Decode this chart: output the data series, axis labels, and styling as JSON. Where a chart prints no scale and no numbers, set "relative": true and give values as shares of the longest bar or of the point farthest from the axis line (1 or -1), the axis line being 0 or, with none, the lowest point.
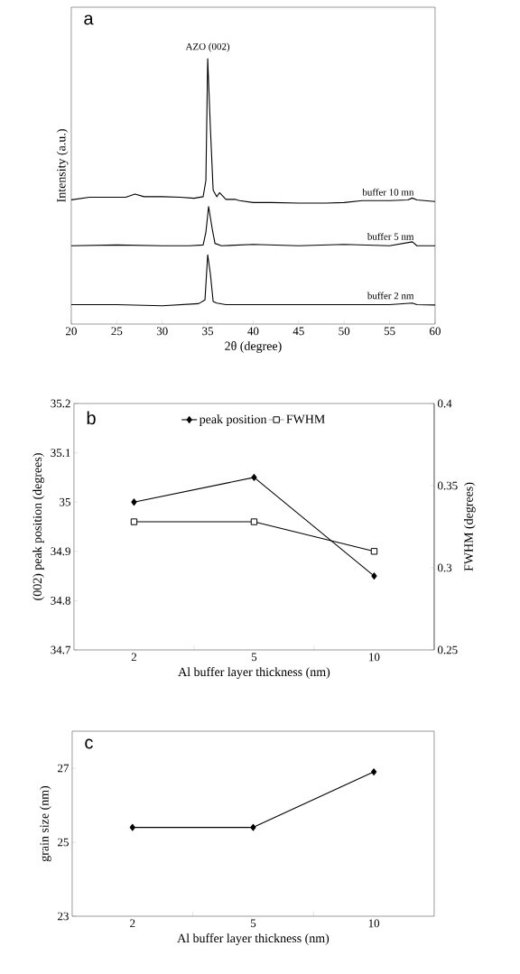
{
  "chart_data": [
    {
      "type": "line",
      "title": "a",
      "xlabel": "2θ (degree)",
      "ylabel": "Intensity (a.u.)",
      "relative": true,
      "xlim": [
        20,
        60
      ],
      "xticks": [
        20,
        25,
        30,
        35,
        40,
        45,
        50,
        55,
        60
      ],
      "marker": "none",
      "annotations": [
        {
          "text": "AZO (002)",
          "x": 35,
          "y": 1.0
        }
      ],
      "series": [
        {
          "name": "buffer 10 mn",
          "color": "#000000",
          "x": [
            20,
            22,
            24,
            26,
            27,
            28,
            30,
            32,
            33.5,
            34.5,
            34.8,
            35.0,
            35.3,
            35.6,
            36,
            36.3,
            37,
            38,
            38.5,
            40,
            42,
            45,
            48,
            50,
            52,
            55,
            57,
            57.5,
            58,
            60
          ],
          "values": [
            0.468,
            0.478,
            0.478,
            0.478,
            0.49,
            0.48,
            0.48,
            0.478,
            0.474,
            0.48,
            0.541,
            1.0,
            0.735,
            0.504,
            0.48,
            0.495,
            0.47,
            0.47,
            0.465,
            0.458,
            0.458,
            0.456,
            0.456,
            0.458,
            0.465,
            0.465,
            0.468,
            0.475,
            0.468,
            0.462
          ]
        },
        {
          "name": "buffer 5 nm",
          "color": "#000000",
          "x": [
            20,
            25,
            30,
            33,
            34.5,
            34.8,
            35.1,
            35.5,
            35.8,
            36.5,
            40,
            45,
            50,
            55,
            57.5,
            58,
            60
          ],
          "values": [
            0.295,
            0.298,
            0.295,
            0.295,
            0.298,
            0.346,
            0.443,
            0.358,
            0.304,
            0.295,
            0.3,
            0.295,
            0.3,
            0.295,
            0.31,
            0.295,
            0.295
          ]
        },
        {
          "name": "buffer 2 nm",
          "color": "#000000",
          "x": [
            20,
            25,
            30,
            34,
            34.7,
            35.0,
            35.3,
            35.6,
            36,
            37,
            40,
            45,
            50,
            55,
            57.5,
            58,
            60
          ],
          "values": [
            0.073,
            0.073,
            0.069,
            0.077,
            0.091,
            0.261,
            0.188,
            0.085,
            0.079,
            0.073,
            0.073,
            0.073,
            0.073,
            0.073,
            0.079,
            0.073,
            0.072
          ]
        }
      ]
    },
    {
      "type": "line",
      "title": "b",
      "categories": [
        "2",
        "5",
        "10"
      ],
      "xlabel": "Al buffer layer thickness (nm)",
      "ylabel": "(002) peak position (degrees)",
      "y2label": "FWHM (degrees)",
      "ylim": [
        34.7,
        35.2
      ],
      "yticks": [
        34.7,
        34.8,
        34.9,
        35,
        35.1,
        35.2
      ],
      "y2lim": [
        0.25,
        0.4
      ],
      "y2ticks": [
        0.25,
        0.3,
        0.35,
        0.4
      ],
      "legend": "top",
      "series": [
        {
          "name": "peak position",
          "color": "#000000",
          "marker": "diamond",
          "values": [
            35.0,
            35.05,
            34.85
          ]
        },
        {
          "name": "FWHM",
          "color": "#000000",
          "marker": "square",
          "axis": "y2",
          "values": [
            0.328,
            0.328,
            0.31
          ]
        }
      ]
    },
    {
      "type": "line",
      "title": "c",
      "categories": [
        "2",
        "5",
        "10"
      ],
      "xlabel": "Al buffer layer thickness (nm)",
      "ylabel": "grain size (nm)",
      "ylim": [
        23,
        28
      ],
      "yticks": [
        23,
        25,
        27
      ],
      "marker": "diamond",
      "series": [
        {
          "color": "#000000",
          "values": [
            25.4,
            25.4,
            26.9
          ]
        }
      ]
    }
  ]
}
